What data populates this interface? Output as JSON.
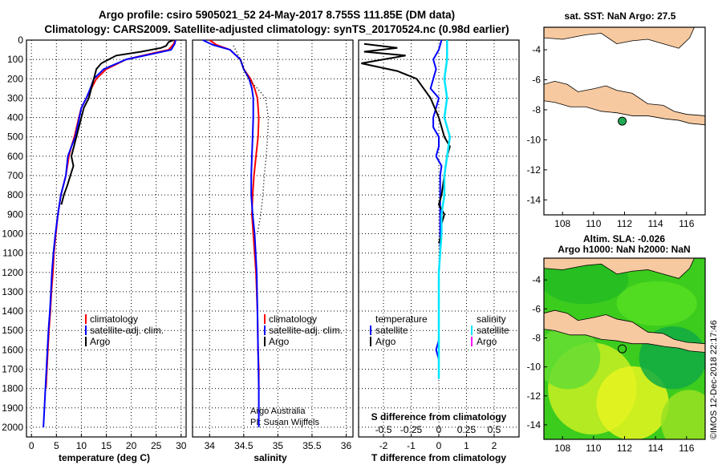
{
  "header": {
    "title_line1": "Argo profile: csiro 5905021_52 24-May-2017 8.755S 111.85E (DM data)",
    "title_line2": "Climatology: CARS2009. Satellite-adjusted climatology: synTS_20170524.nc (0.98d earlier)"
  },
  "colors": {
    "climatology": "#ff0000",
    "satellite": "#0000ff",
    "argo": "#000000",
    "satellite_salinity": "#00e5ff",
    "argo_salinity": "#ff00ff",
    "land": "#f7c9a0",
    "sst_dot": "#22aa55"
  },
  "chart_data": [
    {
      "type": "line",
      "xlabel": "temperature (deg C)",
      "ylim": [
        2050,
        0
      ],
      "xlim": [
        -1,
        31
      ],
      "xticks": [
        0,
        5,
        10,
        15,
        20,
        25,
        30
      ],
      "yticks": [
        0,
        100,
        200,
        300,
        400,
        500,
        600,
        700,
        800,
        900,
        1000,
        1100,
        1200,
        1300,
        1400,
        1500,
        1600,
        1700,
        1800,
        1900,
        2000
      ],
      "legend": [
        "climatology",
        "satellite-adj. clim.",
        "Argo"
      ],
      "series": [
        {
          "name": "climatology",
          "x": [
            28.8,
            28.5,
            27.5,
            24,
            19,
            15,
            13,
            12,
            11,
            10,
            9.5,
            8.6,
            8,
            7.5,
            6.9,
            5.9,
            5.3,
            4.9,
            4.5,
            4.3,
            4,
            3.8,
            3.5,
            3.3,
            3.1,
            2.9
          ],
          "y": [
            0,
            20,
            50,
            70,
            100,
            150,
            200,
            250,
            300,
            350,
            400,
            500,
            550,
            600,
            700,
            800,
            900,
            1000,
            1100,
            1200,
            1300,
            1400,
            1500,
            1600,
            1700,
            1800
          ]
        },
        {
          "name": "satellite-adj. clim.",
          "x": [
            28.9,
            28.7,
            28,
            24.5,
            19,
            14.5,
            12.5,
            11.8,
            11,
            10,
            9.6,
            8.8,
            8,
            7.3,
            6.9,
            5.9,
            5.3,
            4.8,
            4.4,
            4.1,
            3.9,
            3.7,
            3.4,
            3.2,
            3,
            2.8,
            2.6,
            2.4
          ],
          "y": [
            0,
            20,
            50,
            70,
            100,
            150,
            200,
            250,
            300,
            350,
            400,
            500,
            550,
            600,
            700,
            800,
            900,
            1000,
            1100,
            1200,
            1300,
            1400,
            1500,
            1600,
            1700,
            1800,
            1900,
            2000
          ]
        },
        {
          "name": "Argo",
          "x": [
            28.5,
            27.5,
            27,
            26,
            22,
            17,
            14,
            13,
            12.5,
            12,
            11.5,
            10.5,
            10,
            9.5,
            9,
            8.5,
            8,
            8.4,
            7.8,
            7.2,
            6.5,
            6
          ],
          "y": [
            0,
            10,
            30,
            40,
            60,
            80,
            120,
            150,
            200,
            250,
            300,
            350,
            400,
            450,
            500,
            550,
            600,
            650,
            700,
            750,
            800,
            850
          ]
        }
      ]
    },
    {
      "type": "line",
      "xlabel": "salinity",
      "ylim": [
        2050,
        0
      ],
      "xlim": [
        33.75,
        36.1
      ],
      "xticks": [
        34,
        34.5,
        35,
        35.5,
        36
      ],
      "legend": [
        "climatology",
        "satellite-adj. clim.",
        "Argo"
      ],
      "series": [
        {
          "name": "climatology",
          "x": [
            34.0,
            34.1,
            34.3,
            34.45,
            34.5,
            34.6,
            34.66,
            34.7,
            34.72,
            34.71,
            34.68,
            34.65,
            34.63,
            34.62,
            34.64,
            34.68,
            34.7,
            34.71,
            34.72,
            34.72
          ],
          "y": [
            0,
            25,
            50,
            100,
            150,
            200,
            250,
            300,
            400,
            500,
            600,
            700,
            800,
            900,
            1000,
            1200,
            1400,
            1600,
            1700,
            1800
          ]
        },
        {
          "name": "satellite-adj. clim.",
          "x": [
            33.9,
            34.05,
            34.3,
            34.45,
            34.5,
            34.58,
            34.62,
            34.64,
            34.64,
            34.63,
            34.62,
            34.61,
            34.61,
            34.63,
            34.66,
            34.69,
            34.7,
            34.71,
            34.72,
            34.72
          ],
          "y": [
            0,
            25,
            50,
            100,
            150,
            200,
            250,
            300,
            400,
            500,
            600,
            700,
            800,
            900,
            1000,
            1200,
            1400,
            1600,
            1800,
            2000
          ]
        },
        {
          "name": "Argo",
          "x": [
            34.35,
            34.45,
            34.5,
            34.57,
            34.7,
            34.82,
            34.86,
            34.85,
            34.83,
            34.8,
            34.78,
            34.75,
            34.7
          ],
          "y": [
            30,
            100,
            150,
            200,
            250,
            300,
            400,
            500,
            600,
            700,
            800,
            900,
            1000
          ]
        }
      ],
      "annotation": [
        "Argo Australia",
        "PI: Susan Wijffels"
      ]
    },
    {
      "type": "line",
      "xlabel": "T difference from climatology",
      "xlabel_top": "S difference from climatology",
      "ylim": [
        2050,
        0
      ],
      "xlim": [
        -2.9,
        2.9
      ],
      "xticks": [
        -2,
        -1,
        0,
        1,
        2
      ],
      "xticks_top": [
        "-0.5",
        "-0.25",
        "0",
        "0.25",
        "0.5"
      ],
      "legend": {
        "temperature": [
          "satellite",
          "Argo"
        ],
        "salinity": [
          "satellite",
          "Argo"
        ]
      },
      "series": [
        {
          "name": "T satellite",
          "x": [
            0.1,
            0.0,
            -0.2,
            -0.1,
            -0.2,
            -0.3,
            0.0,
            -0.1,
            -0.2,
            -0.2,
            0.0,
            0.0,
            -0.1,
            0.1,
            0.05,
            0.05,
            0.05,
            0.05,
            0.05,
            0.0,
            0.0,
            0.0,
            0.0,
            0.0,
            -0.1,
            0.0,
            0.0,
            0.0
          ],
          "y": [
            0,
            50,
            100,
            150,
            200,
            250,
            300,
            350,
            400,
            450,
            500,
            550,
            600,
            650,
            700,
            800,
            900,
            1000,
            1100,
            1200,
            1300,
            1400,
            1500,
            1550,
            1600,
            1650,
            1700,
            1750
          ]
        },
        {
          "name": "T Argo",
          "x": [
            -2.7,
            -1.5,
            -2.7,
            -1.2,
            -2.0,
            -2.8,
            -1.5,
            -0.8,
            -0.3,
            0.0,
            0.2,
            0.4,
            0.3,
            0.2,
            0.1,
            0.0,
            0.2,
            0.1,
            0.1,
            0.0
          ],
          "y": [
            20,
            40,
            60,
            80,
            100,
            120,
            160,
            200,
            300,
            400,
            500,
            550,
            600,
            700,
            800,
            850,
            900,
            950,
            1000,
            1050
          ]
        },
        {
          "name": "S satellite",
          "x": [
            0.3,
            0.3,
            0.2,
            0.3,
            0.2,
            0.4,
            0.3,
            0.2,
            0.2,
            0.1,
            0.1,
            0.0,
            0.0,
            0.0,
            0.0,
            0.0
          ],
          "y": [
            0,
            100,
            200,
            300,
            400,
            500,
            600,
            700,
            800,
            900,
            1000,
            1200,
            1400,
            1600,
            1700,
            1750
          ]
        }
      ]
    }
  ],
  "maps": {
    "top": {
      "title": "sat. SST: NaN Argo: 27.5",
      "xticks": [
        "108",
        "110",
        "112",
        "114",
        "116"
      ],
      "yticks": [
        "-4",
        "-6",
        "-8",
        "-10",
        "-12",
        "-14"
      ],
      "argo_lon": 111.85,
      "argo_lat": -8.755
    },
    "bottom": {
      "title_line1": "Altim. SLA: -0.026",
      "title_line2": "Argo h1000: NaN h2000: NaN",
      "xticks": [
        "108",
        "110",
        "112",
        "114",
        "116"
      ],
      "yticks": [
        "-4",
        "-6",
        "-8",
        "-10",
        "-12",
        "-14"
      ],
      "argo_lon": 111.85,
      "argo_lat": -8.755
    }
  },
  "side_stamp": "©IMOS 12-Dec-2018 22:17:46"
}
